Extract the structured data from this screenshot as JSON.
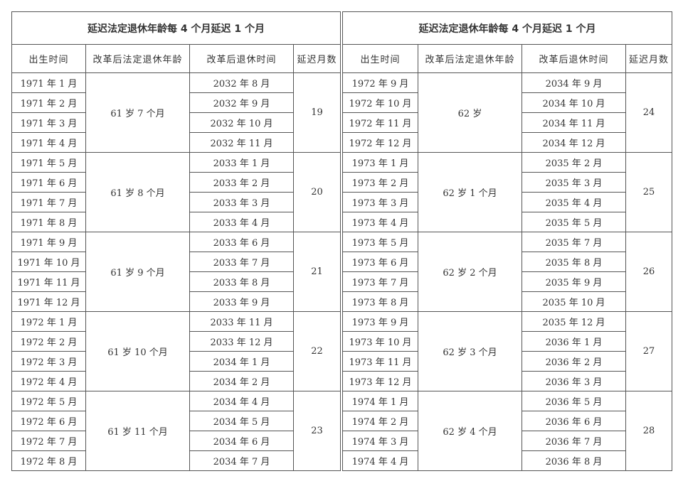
{
  "tables": [
    {
      "title": "延迟法定退休年龄每 4 个月延迟 1 个月",
      "headers": [
        "出生时间",
        "改革后法定退休年龄",
        "改革后退休时间",
        "延迟月数"
      ],
      "groups": [
        {
          "age": "61 岁 7 个月",
          "delay": "19",
          "births": [
            "1971 年 1 月",
            "1971 年 2 月",
            "1971 年 3 月",
            "1971 年 4 月"
          ],
          "retire": [
            "2032 年 8 月",
            "2032 年 9 月",
            "2032 年 10 月",
            "2032 年 11 月"
          ]
        },
        {
          "age": "61 岁 8 个月",
          "delay": "20",
          "births": [
            "1971 年 5 月",
            "1971 年 6 月",
            "1971 年 7 月",
            "1971 年 8 月"
          ],
          "retire": [
            "2033 年 1 月",
            "2033 年 2 月",
            "2033 年 3 月",
            "2033 年 4 月"
          ]
        },
        {
          "age": "61 岁 9 个月",
          "delay": "21",
          "births": [
            "1971 年 9 月",
            "1971 年 10 月",
            "1971 年 11 月",
            "1971 年 12 月"
          ],
          "retire": [
            "2033 年 6 月",
            "2033 年 7 月",
            "2033 年 8 月",
            "2033 年 9 月"
          ]
        },
        {
          "age": "61 岁 10 个月",
          "delay": "22",
          "births": [
            "1972 年 1 月",
            "1972 年 2 月",
            "1972 年 3 月",
            "1972 年 4 月"
          ],
          "retire": [
            "2033 年 11 月",
            "2033 年 12 月",
            "2034 年 1 月",
            "2034 年 2 月"
          ]
        },
        {
          "age": "61 岁 11 个月",
          "delay": "23",
          "births": [
            "1972 年 5 月",
            "1972 年 6 月",
            "1972 年 7 月",
            "1972 年 8 月"
          ],
          "retire": [
            "2034 年 4 月",
            "2034 年 5 月",
            "2034 年 6 月",
            "2034 年 7 月"
          ]
        }
      ]
    },
    {
      "title": "延迟法定退休年龄每 4 个月延迟 1 个月",
      "headers": [
        "出生时间",
        "改革后法定退休年龄",
        "改革后退休时间",
        "延迟月数"
      ],
      "groups": [
        {
          "age": "62 岁",
          "delay": "24",
          "births": [
            "1972 年 9 月",
            "1972 年 10 月",
            "1972 年 11 月",
            "1972 年 12 月"
          ],
          "retire": [
            "2034 年 9 月",
            "2034 年 10 月",
            "2034 年 11 月",
            "2034 年 12 月"
          ]
        },
        {
          "age": "62 岁 1 个月",
          "delay": "25",
          "births": [
            "1973 年 1 月",
            "1973 年 2 月",
            "1973 年 3 月",
            "1973 年 4 月"
          ],
          "retire": [
            "2035 年 2 月",
            "2035 年 3 月",
            "2035 年 4 月",
            "2035 年 5 月"
          ]
        },
        {
          "age": "62 岁 2 个月",
          "delay": "26",
          "births": [
            "1973 年 5 月",
            "1973 年 6 月",
            "1973 年 7 月",
            "1973 年 8 月"
          ],
          "retire": [
            "2035 年 7 月",
            "2035 年 8 月",
            "2035 年 9 月",
            "2035 年 10 月"
          ]
        },
        {
          "age": "62 岁 3 个月",
          "delay": "27",
          "births": [
            "1973 年 9 月",
            "1973 年 10 月",
            "1973 年 11 月",
            "1973 年 12 月"
          ],
          "retire": [
            "2035 年 12 月",
            "2036 年 1 月",
            "2036 年 2 月",
            "2036 年 3 月"
          ]
        },
        {
          "age": "62 岁 4 个月",
          "delay": "28",
          "births": [
            "1974 年 1 月",
            "1974 年 2 月",
            "1974 年 3 月",
            "1974 年 4 月"
          ],
          "retire": [
            "2036 年 5 月",
            "2036 年 6 月",
            "2036 年 7 月",
            "2036 年 8 月"
          ]
        }
      ]
    }
  ]
}
